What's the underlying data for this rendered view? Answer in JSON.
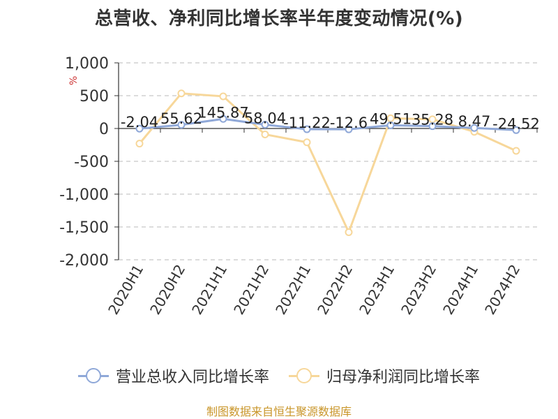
{
  "title": "总营收、净利同比增长率半年度变动情况(%)",
  "unit_label": "%",
  "source": "制图数据来自恒生聚源数据库",
  "colors": {
    "revenue": "#8fa8d8",
    "profit": "#f7d79a"
  },
  "chart_data": {
    "type": "line",
    "title": "总营收、净利同比增长率半年度变动情况(%)",
    "categories": [
      "2020H1",
      "2020H2",
      "2021H1",
      "2021H2",
      "2022H1",
      "2022H2",
      "2023H1",
      "2023H2",
      "2024H1",
      "2024H2"
    ],
    "ylim": [
      -2000,
      1000
    ],
    "yticks": [
      1000,
      500,
      0,
      -500,
      -1000,
      -1500,
      -2000
    ],
    "ytick_labels": [
      "1,000",
      "500",
      "0",
      "-500",
      "-1,000",
      "-1,500",
      "-2,000"
    ],
    "grid": true,
    "legend_position": "bottom",
    "series": [
      {
        "name": "营业总收入同比增长率",
        "values": [
          -2.04,
          55.62,
          145.87,
          58.04,
          -11.22,
          -12.6,
          49.51,
          35.28,
          8.47,
          -24.52
        ],
        "labels": [
          "-2.04",
          "55.62",
          "145.87",
          "58.04",
          "-11.22",
          "-12.6",
          "49.51",
          "35.28",
          "8.47",
          "-24.52"
        ]
      },
      {
        "name": "归母净利润同比增长率",
        "values": [
          -230,
          535,
          490,
          -90,
          -210,
          -1580,
          155,
          140,
          -50,
          -340
        ]
      }
    ]
  }
}
